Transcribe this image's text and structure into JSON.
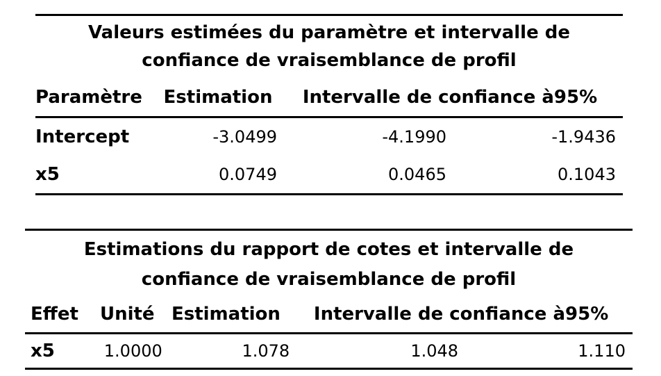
{
  "table1": {
    "title_line1": "Valeurs estimées du paramètre et intervalle de",
    "title_line2": "confiance de vraisemblance de profil",
    "headers": {
      "parameter": "Paramètre",
      "estimate": "Estimation",
      "ci": "Intervalle de confiance à95%"
    },
    "rows": [
      {
        "parameter": "Intercept",
        "estimate": "-3.0499",
        "lower": "-4.1990",
        "upper": "-1.9436"
      },
      {
        "parameter": "x5",
        "estimate": "0.0749",
        "lower": "0.0465",
        "upper": "0.1043"
      }
    ]
  },
  "table2": {
    "title_line1": "Estimations du rapport de cotes et intervalle de",
    "title_line2": "confiance de vraisemblance de profil",
    "headers": {
      "effect": "Effet",
      "unit": "Unité",
      "estimate": "Estimation",
      "ci": "Intervalle de confiance à95%"
    },
    "rows": [
      {
        "effect": "x5",
        "unit": "1.0000",
        "estimate": "1.078",
        "lower": "1.048",
        "upper": "1.110"
      }
    ]
  }
}
